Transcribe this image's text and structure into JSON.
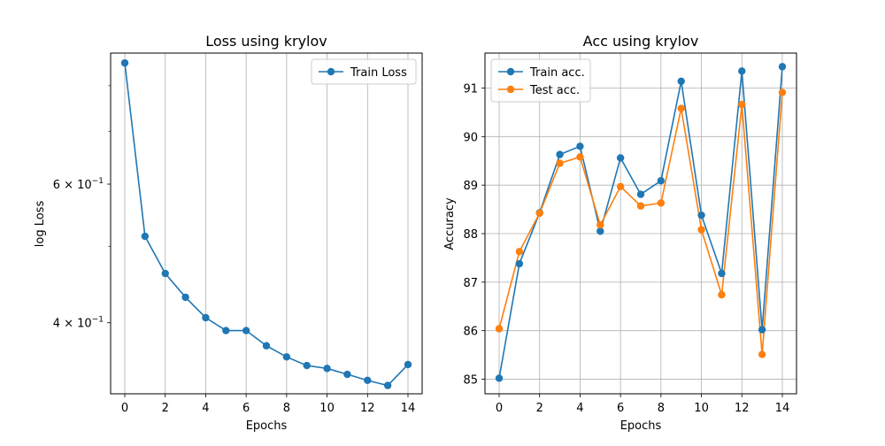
{
  "chart_data": [
    {
      "type": "line",
      "title": "Loss using krylov",
      "xlabel": "Epochs",
      "ylabel": "log Loss",
      "yscale": "log",
      "xlim": [
        -0.7,
        14.7
      ],
      "ylim": [
        0.325,
        0.88
      ],
      "x_ticks": [
        0,
        2,
        4,
        6,
        8,
        10,
        12,
        14
      ],
      "x_tick_labels": [
        "0",
        "2",
        "4",
        "6",
        "8",
        "10",
        "12",
        "14"
      ],
      "y_major_ticks": [
        0.4,
        0.6
      ],
      "y_major_tick_labels": [
        {
          "base": "4",
          "sup": "−1"
        },
        {
          "base": "6",
          "sup": "−1"
        }
      ],
      "y_minor_ticks": [
        0.5,
        0.7,
        0.8
      ],
      "grid": "x",
      "legend": "top-right",
      "x": [
        0,
        1,
        2,
        3,
        4,
        5,
        6,
        7,
        8,
        9,
        10,
        11,
        12,
        13,
        14
      ],
      "series": [
        {
          "name": "Train Loss",
          "color": "#1f77b4",
          "values": [
            0.855,
            0.515,
            0.462,
            0.431,
            0.406,
            0.391,
            0.391,
            0.374,
            0.362,
            0.353,
            0.35,
            0.344,
            0.338,
            0.333,
            0.354
          ]
        }
      ]
    },
    {
      "type": "line",
      "title": "Acc using krylov",
      "xlabel": "Epochs",
      "ylabel": "Accuracy",
      "xlim": [
        -0.7,
        14.7
      ],
      "ylim": [
        84.7,
        91.72
      ],
      "x_ticks": [
        0,
        2,
        4,
        6,
        8,
        10,
        12,
        14
      ],
      "x_tick_labels": [
        "0",
        "2",
        "4",
        "6",
        "8",
        "10",
        "12",
        "14"
      ],
      "y_ticks": [
        85,
        86,
        87,
        88,
        89,
        90,
        91
      ],
      "y_tick_labels": [
        "85",
        "86",
        "87",
        "88",
        "89",
        "90",
        "91"
      ],
      "grid": "both",
      "legend": "top-left",
      "x": [
        0,
        1,
        2,
        3,
        4,
        5,
        6,
        7,
        8,
        9,
        10,
        11,
        12,
        13,
        14
      ],
      "series": [
        {
          "name": "Train acc.",
          "color": "#1f77b4",
          "values": [
            85.02,
            87.38,
            88.43,
            89.63,
            89.8,
            88.05,
            89.56,
            88.81,
            89.09,
            91.14,
            88.38,
            87.18,
            91.35,
            86.02,
            91.44
          ]
        },
        {
          "name": "Test acc.",
          "color": "#ff7f0e",
          "values": [
            86.04,
            87.63,
            88.42,
            89.45,
            89.58,
            88.18,
            88.97,
            88.57,
            88.63,
            90.58,
            88.08,
            86.74,
            90.66,
            85.51,
            90.91
          ]
        }
      ]
    }
  ]
}
